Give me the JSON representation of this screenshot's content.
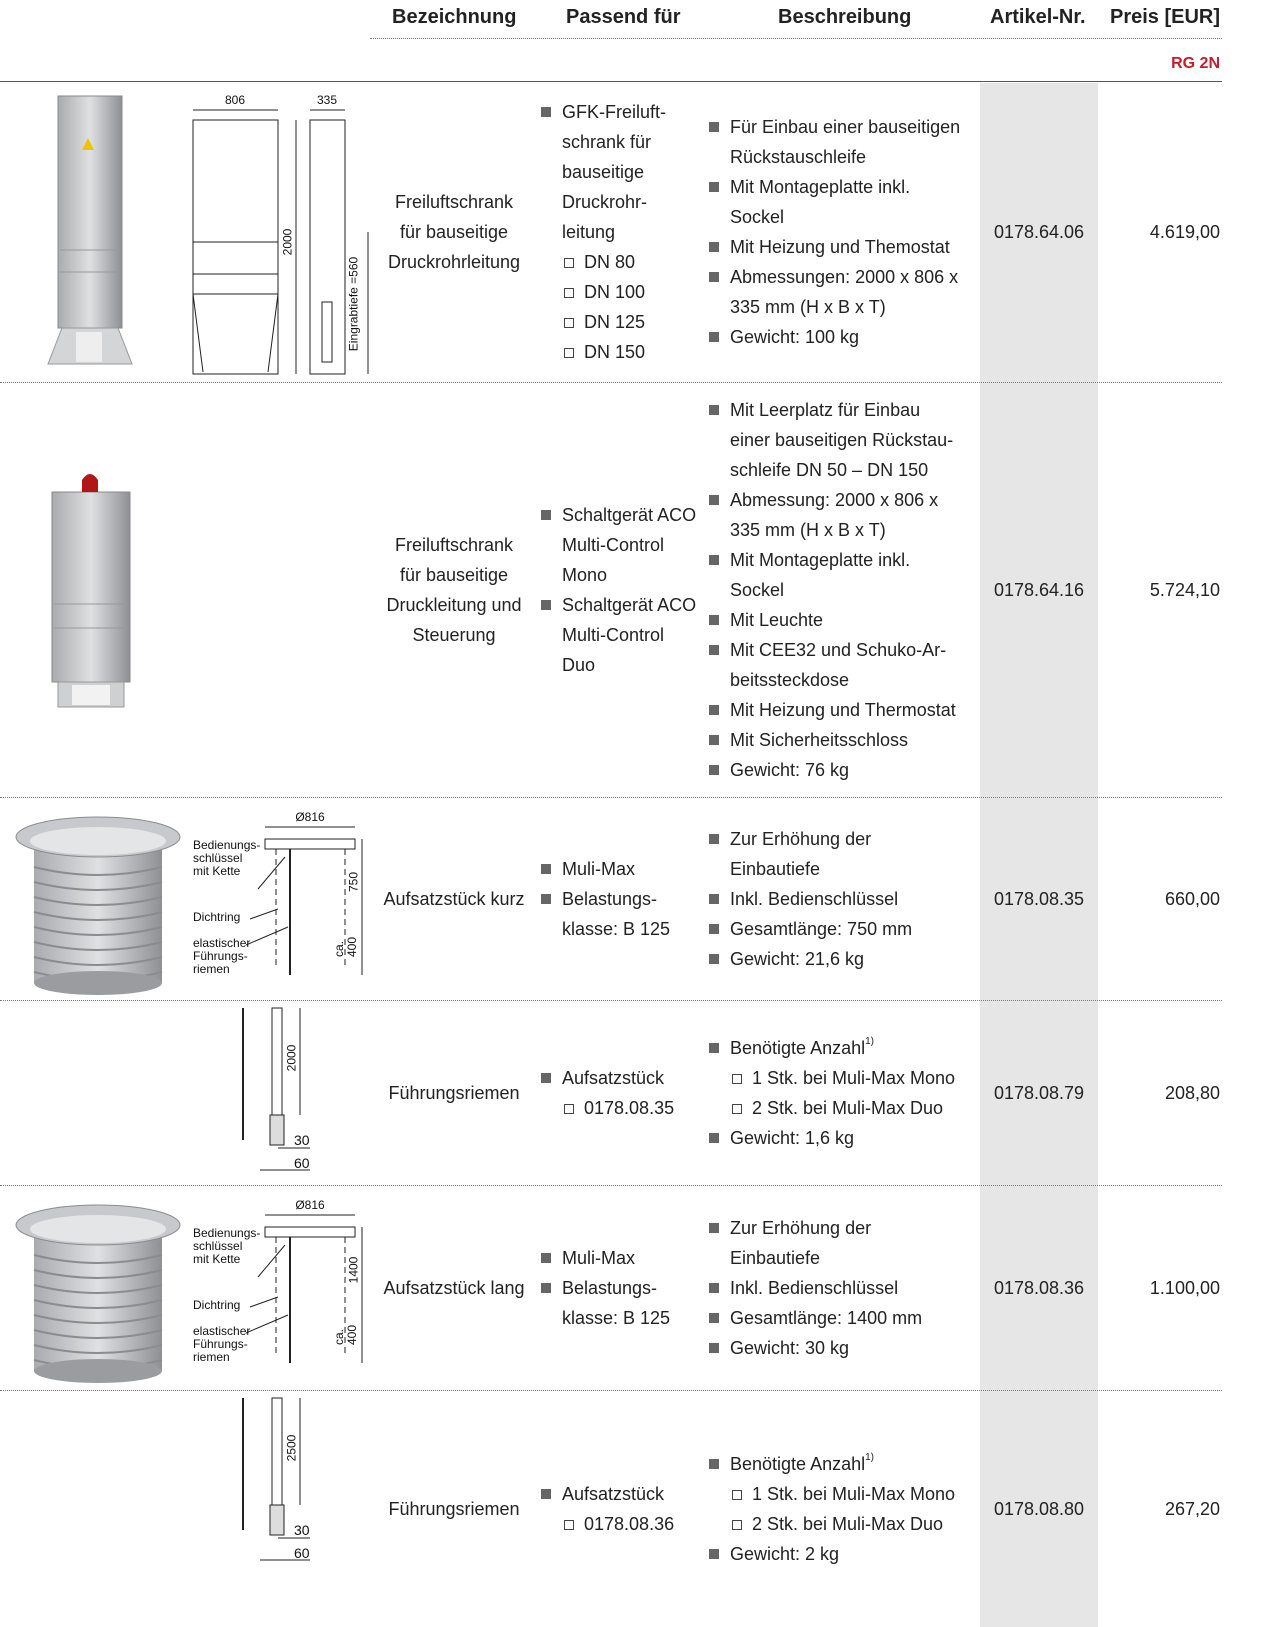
{
  "header": {
    "columns": [
      "Bezeichnung",
      "Passend für",
      "Beschreibung",
      "Artikel-Nr.",
      "Preis [EUR]"
    ],
    "group": "RG 2N"
  },
  "rows": [
    {
      "name": "Freiluftschrank\nfür bauseitige\nDruckrohrleitung",
      "fits": [
        {
          "text": "GFK-Freiluft-\nschrank für\nbauseitige\nDruckrohr-\nleitung",
          "sub": [
            "DN 80",
            "DN 100",
            "DN 125",
            "DN 150"
          ]
        }
      ],
      "description": [
        {
          "text": "Für Einbau einer bauseitigen\nRückstauschleife"
        },
        {
          "text": "Mit Montageplatte inkl.\nSockel"
        },
        {
          "text": "Mit Heizung und Themostat"
        },
        {
          "text": "Abmessungen: 2000 x 806 x\n335 mm (H x B x T)"
        },
        {
          "text": "Gewicht: 100 kg"
        }
      ],
      "article": "0178.64.06",
      "price": "4.619,00",
      "drawing": [
        "806",
        "335",
        "2000",
        "Eingrabtiefe =560"
      ]
    },
    {
      "name": "Freiluftschrank\nfür bauseitige\nDruckleitung und\nSteuerung",
      "fits": [
        {
          "text": "Schaltgerät ACO\nMulti-Control\nMono"
        },
        {
          "text": "Schaltgerät ACO\nMulti-Control\nDuo"
        }
      ],
      "description": [
        {
          "text": "Mit Leerplatz für Einbau\neiner bauseitigen Rückstau-\nschleife DN 50 – DN 150"
        },
        {
          "text": "Abmessung: 2000 x 806 x\n335 mm (H x B x T)"
        },
        {
          "text": "Mit Montageplatte inkl.\nSockel"
        },
        {
          "text": "Mit Leuchte"
        },
        {
          "text": "Mit CEE32 und Schuko-Ar-\nbeitssteckdose"
        },
        {
          "text": "Mit Heizung und Thermostat"
        },
        {
          "text": "Mit Sicherheitsschloss"
        },
        {
          "text": "Gewicht: 76 kg"
        }
      ],
      "article": "0178.64.16",
      "price": "5.724,10"
    },
    {
      "name": "Aufsatzstück kurz",
      "fits": [
        {
          "text": "Muli-Max"
        },
        {
          "text": "Belastungs-\nklasse: B 125"
        }
      ],
      "description": [
        {
          "text": "Zur Erhöhung der\nEinbautiefe"
        },
        {
          "text": "Inkl. Bedienschlüssel"
        },
        {
          "text": "Gesamtlänge: 750 mm"
        },
        {
          "text": "Gewicht: 21,6 kg"
        }
      ],
      "article": "0178.08.35",
      "price": "660,00",
      "drawing": [
        "Ø816",
        "Bedienungs-\nschlüssel\nmit Kette",
        "Dichtring",
        "elastischer\nFührungs-\nriemen",
        "750",
        "ca.\n400"
      ]
    },
    {
      "name": "Führungsriemen",
      "fits": [
        {
          "text": "Aufsatzstück",
          "sub": [
            "0178.08.35"
          ]
        }
      ],
      "description": [
        {
          "text": "Benötigte Anzahl",
          "note": "1)",
          "sub": [
            "1 Stk. bei Muli-Max Mono",
            "2 Stk. bei Muli-Max Duo"
          ]
        },
        {
          "text": "Gewicht: 1,6 kg"
        }
      ],
      "article": "0178.08.79",
      "price": "208,80",
      "drawing": [
        "2000",
        "30",
        "60"
      ]
    },
    {
      "name": "Aufsatzstück lang",
      "fits": [
        {
          "text": "Muli-Max"
        },
        {
          "text": "Belastungs-\nklasse: B 125"
        }
      ],
      "description": [
        {
          "text": "Zur Erhöhung der\nEinbautiefe"
        },
        {
          "text": "Inkl. Bedienschlüssel"
        },
        {
          "text": "Gesamtlänge: 1400 mm"
        },
        {
          "text": "Gewicht: 30 kg"
        }
      ],
      "article": "0178.08.36",
      "price": "1.100,00",
      "drawing": [
        "Ø816",
        "Bedienungs-\nschlüssel\nmit Kette",
        "Dichtring",
        "elastischer\nFührungs-\nriemen",
        "1400",
        "ca.\n400"
      ]
    },
    {
      "name": "Führungsriemen",
      "fits": [
        {
          "text": "Aufsatzstück",
          "sub": [
            "0178.08.36"
          ]
        }
      ],
      "description": [
        {
          "text": "Benötigte Anzahl",
          "note": "1)",
          "sub": [
            "1 Stk. bei Muli-Max Mono",
            "2 Stk. bei Muli-Max Duo"
          ]
        },
        {
          "text": "Gewicht: 2 kg"
        }
      ],
      "article": "0178.08.80",
      "price": "267,20",
      "drawing": [
        "2500",
        "30",
        "60"
      ]
    }
  ]
}
